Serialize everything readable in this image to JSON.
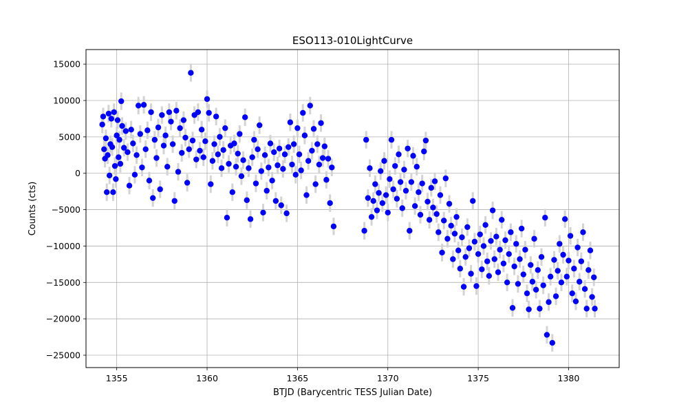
{
  "chart_data": {
    "type": "scatter",
    "title": "ESO113-010LightCurve",
    "xlabel": "BTJD (Barycentric TESS Julian Date)",
    "ylabel": "Counts (cts)",
    "xlim": [
      1353.3,
      1382.8
    ],
    "ylim": [
      -26700,
      17000
    ],
    "x_ticks": [
      1355,
      1360,
      1365,
      1370,
      1375,
      1380
    ],
    "y_ticks": [
      -25000,
      -20000,
      -15000,
      -10000,
      -5000,
      0,
      5000,
      10000,
      15000
    ],
    "grid": true,
    "marker_color": "#0000ff",
    "errorbar_color": "#d3d3d3",
    "errorbar_halfwidth": 1200,
    "points": [
      [
        1354.2,
        6700
      ],
      [
        1354.25,
        7800
      ],
      [
        1354.3,
        3300
      ],
      [
        1354.35,
        2000
      ],
      [
        1354.4,
        4800
      ],
      [
        1354.45,
        -2600
      ],
      [
        1354.5,
        2500
      ],
      [
        1354.55,
        8200
      ],
      [
        1354.6,
        -300
      ],
      [
        1354.65,
        4000
      ],
      [
        1354.7,
        7500
      ],
      [
        1354.75,
        3600
      ],
      [
        1354.8,
        -2600
      ],
      [
        1354.85,
        8400
      ],
      [
        1354.9,
        1000
      ],
      [
        1354.95,
        -800
      ],
      [
        1355.0,
        5200
      ],
      [
        1355.05,
        7300
      ],
      [
        1355.1,
        2200
      ],
      [
        1355.15,
        4600
      ],
      [
        1355.2,
        1300
      ],
      [
        1355.25,
        9900
      ],
      [
        1355.3,
        6500
      ],
      [
        1355.4,
        3500
      ],
      [
        1355.5,
        5800
      ],
      [
        1355.6,
        2900
      ],
      [
        1355.7,
        -1700
      ],
      [
        1355.8,
        6000
      ],
      [
        1355.9,
        4100
      ],
      [
        1356.0,
        -200
      ],
      [
        1356.1,
        2500
      ],
      [
        1356.2,
        9300
      ],
      [
        1356.3,
        5400
      ],
      [
        1356.4,
        800
      ],
      [
        1356.5,
        9400
      ],
      [
        1356.6,
        3300
      ],
      [
        1356.7,
        5900
      ],
      [
        1356.8,
        -1000
      ],
      [
        1356.9,
        8400
      ],
      [
        1357.0,
        -3400
      ],
      [
        1357.1,
        4600
      ],
      [
        1357.2,
        2100
      ],
      [
        1357.3,
        6300
      ],
      [
        1357.4,
        -2200
      ],
      [
        1357.5,
        8000
      ],
      [
        1357.6,
        3800
      ],
      [
        1357.7,
        5200
      ],
      [
        1357.8,
        900
      ],
      [
        1357.9,
        8400
      ],
      [
        1358.0,
        7100
      ],
      [
        1358.1,
        4000
      ],
      [
        1358.2,
        -3800
      ],
      [
        1358.3,
        8600
      ],
      [
        1358.4,
        200
      ],
      [
        1358.5,
        6200
      ],
      [
        1358.6,
        2800
      ],
      [
        1358.7,
        7300
      ],
      [
        1358.8,
        4900
      ],
      [
        1358.9,
        -1300
      ],
      [
        1359.0,
        3300
      ],
      [
        1359.1,
        13800
      ],
      [
        1359.2,
        4500
      ],
      [
        1359.3,
        8000
      ],
      [
        1359.4,
        1900
      ],
      [
        1359.5,
        8400
      ],
      [
        1359.6,
        3100
      ],
      [
        1359.7,
        6000
      ],
      [
        1359.8,
        2200
      ],
      [
        1359.9,
        4400
      ],
      [
        1360.0,
        10200
      ],
      [
        1360.1,
        8300
      ],
      [
        1360.2,
        -1500
      ],
      [
        1360.3,
        1700
      ],
      [
        1360.4,
        4000
      ],
      [
        1360.5,
        7800
      ],
      [
        1360.6,
        2600
      ],
      [
        1360.7,
        5000
      ],
      [
        1360.8,
        700
      ],
      [
        1360.9,
        3200
      ],
      [
        1361.0,
        6200
      ],
      [
        1361.1,
        -6100
      ],
      [
        1361.2,
        1300
      ],
      [
        1361.3,
        3800
      ],
      [
        1361.4,
        -2600
      ],
      [
        1361.5,
        4100
      ],
      [
        1361.6,
        900
      ],
      [
        1361.7,
        2700
      ],
      [
        1361.8,
        5400
      ],
      [
        1361.9,
        -400
      ],
      [
        1362.0,
        1800
      ],
      [
        1362.1,
        7700
      ],
      [
        1362.2,
        -3700
      ],
      [
        1362.3,
        700
      ],
      [
        1362.4,
        -6300
      ],
      [
        1362.5,
        2200
      ],
      [
        1362.6,
        4600
      ],
      [
        1362.7,
        -1400
      ],
      [
        1362.8,
        3300
      ],
      [
        1362.9,
        6600
      ],
      [
        1363.0,
        300
      ],
      [
        1363.1,
        -5400
      ],
      [
        1363.2,
        2500
      ],
      [
        1363.3,
        -2400
      ],
      [
        1363.4,
        800
      ],
      [
        1363.5,
        4100
      ],
      [
        1363.6,
        -1000
      ],
      [
        1363.7,
        2900
      ],
      [
        1363.8,
        -3800
      ],
      [
        1363.9,
        1100
      ],
      [
        1364.0,
        3400
      ],
      [
        1364.1,
        -4400
      ],
      [
        1364.2,
        600
      ],
      [
        1364.3,
        2600
      ],
      [
        1364.4,
        -5500
      ],
      [
        1364.5,
        3600
      ],
      [
        1364.6,
        7000
      ],
      [
        1364.7,
        1200
      ],
      [
        1364.8,
        4000
      ],
      [
        1364.9,
        -200
      ],
      [
        1365.0,
        6200
      ],
      [
        1365.1,
        2600
      ],
      [
        1365.2,
        400
      ],
      [
        1365.3,
        8300
      ],
      [
        1365.4,
        5200
      ],
      [
        1365.5,
        -3000
      ],
      [
        1365.6,
        1700
      ],
      [
        1365.7,
        9300
      ],
      [
        1365.8,
        3100
      ],
      [
        1365.9,
        6100
      ],
      [
        1366.0,
        -1500
      ],
      [
        1366.1,
        4000
      ],
      [
        1366.2,
        1200
      ],
      [
        1366.3,
        6900
      ],
      [
        1366.4,
        2100
      ],
      [
        1366.5,
        3700
      ],
      [
        1366.6,
        -900
      ],
      [
        1366.7,
        2000
      ],
      [
        1366.8,
        -4100
      ],
      [
        1366.9,
        800
      ],
      [
        1367.0,
        -7300
      ],
      [
        1368.7,
        -7900
      ],
      [
        1368.8,
        4600
      ],
      [
        1368.9,
        -3400
      ],
      [
        1369.0,
        700
      ],
      [
        1369.1,
        -6000
      ],
      [
        1369.2,
        -3800
      ],
      [
        1369.3,
        -1500
      ],
      [
        1369.4,
        -5100
      ],
      [
        1369.5,
        -2700
      ],
      [
        1369.6,
        300
      ],
      [
        1369.7,
        -4100
      ],
      [
        1369.8,
        1700
      ],
      [
        1369.9,
        -3000
      ],
      [
        1370.0,
        -5400
      ],
      [
        1370.1,
        -800
      ],
      [
        1370.2,
        4600
      ],
      [
        1370.3,
        -2200
      ],
      [
        1370.4,
        1000
      ],
      [
        1370.5,
        -3500
      ],
      [
        1370.6,
        2600
      ],
      [
        1370.7,
        -1200
      ],
      [
        1370.8,
        -4800
      ],
      [
        1370.9,
        500
      ],
      [
        1371.0,
        -2400
      ],
      [
        1371.1,
        3400
      ],
      [
        1371.2,
        -7900
      ],
      [
        1371.3,
        -1200
      ],
      [
        1371.4,
        2400
      ],
      [
        1371.5,
        -4500
      ],
      [
        1371.6,
        900
      ],
      [
        1371.7,
        -2600
      ],
      [
        1371.8,
        -5700
      ],
      [
        1371.9,
        -1400
      ],
      [
        1372.0,
        3000
      ],
      [
        1372.1,
        4500
      ],
      [
        1372.2,
        -3900
      ],
      [
        1372.3,
        -6400
      ],
      [
        1372.4,
        -2000
      ],
      [
        1372.5,
        -4700
      ],
      [
        1372.6,
        -1100
      ],
      [
        1372.7,
        -5600
      ],
      [
        1372.8,
        -8100
      ],
      [
        1372.9,
        -3000
      ],
      [
        1373.0,
        -10900
      ],
      [
        1373.1,
        -6500
      ],
      [
        1373.2,
        -700
      ],
      [
        1373.3,
        -9000
      ],
      [
        1373.4,
        -4200
      ],
      [
        1373.5,
        -7200
      ],
      [
        1373.6,
        -11800
      ],
      [
        1373.7,
        -8300
      ],
      [
        1373.8,
        -6000
      ],
      [
        1373.9,
        -10600
      ],
      [
        1374.0,
        -13100
      ],
      [
        1374.1,
        -8800
      ],
      [
        1374.2,
        -15600
      ],
      [
        1374.3,
        -11500
      ],
      [
        1374.4,
        -7400
      ],
      [
        1374.5,
        -10300
      ],
      [
        1374.6,
        -13800
      ],
      [
        1374.7,
        -3800
      ],
      [
        1374.8,
        -9400
      ],
      [
        1374.9,
        -15500
      ],
      [
        1375.0,
        -11100
      ],
      [
        1375.1,
        -8400
      ],
      [
        1375.2,
        -13200
      ],
      [
        1375.3,
        -10000
      ],
      [
        1375.4,
        -7100
      ],
      [
        1375.5,
        -12100
      ],
      [
        1375.6,
        -14100
      ],
      [
        1375.7,
        -9300
      ],
      [
        1375.8,
        -5100
      ],
      [
        1375.9,
        -11800
      ],
      [
        1376.0,
        -8700
      ],
      [
        1376.1,
        -13600
      ],
      [
        1376.2,
        -10500
      ],
      [
        1376.3,
        -6400
      ],
      [
        1376.4,
        -12400
      ],
      [
        1376.5,
        -9200
      ],
      [
        1376.6,
        -15000
      ],
      [
        1376.7,
        -11100
      ],
      [
        1376.8,
        -8100
      ],
      [
        1376.9,
        -18500
      ],
      [
        1377.0,
        -12800
      ],
      [
        1377.1,
        -9700
      ],
      [
        1377.2,
        -15200
      ],
      [
        1377.3,
        -11800
      ],
      [
        1377.4,
        -7600
      ],
      [
        1377.5,
        -13900
      ],
      [
        1377.6,
        -10500
      ],
      [
        1377.7,
        -16500
      ],
      [
        1377.8,
        -18700
      ],
      [
        1377.9,
        -12600
      ],
      [
        1378.0,
        -14900
      ],
      [
        1378.1,
        -9000
      ],
      [
        1378.2,
        -16000
      ],
      [
        1378.3,
        -13300
      ],
      [
        1378.4,
        -18600
      ],
      [
        1378.5,
        -11500
      ],
      [
        1378.6,
        -15400
      ],
      [
        1378.7,
        -6100
      ],
      [
        1378.8,
        -22200
      ],
      [
        1378.9,
        -17700
      ],
      [
        1379.0,
        -14200
      ],
      [
        1379.1,
        -23300
      ],
      [
        1379.2,
        -11900
      ],
      [
        1379.3,
        -16900
      ],
      [
        1379.4,
        -13400
      ],
      [
        1379.5,
        -9700
      ],
      [
        1379.6,
        -15000
      ],
      [
        1379.7,
        -11200
      ],
      [
        1379.8,
        -6300
      ],
      [
        1379.9,
        -14200
      ],
      [
        1380.0,
        -12000
      ],
      [
        1380.1,
        -8600
      ],
      [
        1380.2,
        -16500
      ],
      [
        1380.3,
        -13100
      ],
      [
        1380.4,
        -17600
      ],
      [
        1380.5,
        -10200
      ],
      [
        1380.6,
        -14900
      ],
      [
        1380.7,
        -12100
      ],
      [
        1380.8,
        -8100
      ],
      [
        1380.9,
        -15900
      ],
      [
        1381.0,
        -18600
      ],
      [
        1381.1,
        -13300
      ],
      [
        1381.2,
        -10600
      ],
      [
        1381.3,
        -17000
      ],
      [
        1381.4,
        -14300
      ],
      [
        1381.45,
        -18600
      ]
    ]
  }
}
